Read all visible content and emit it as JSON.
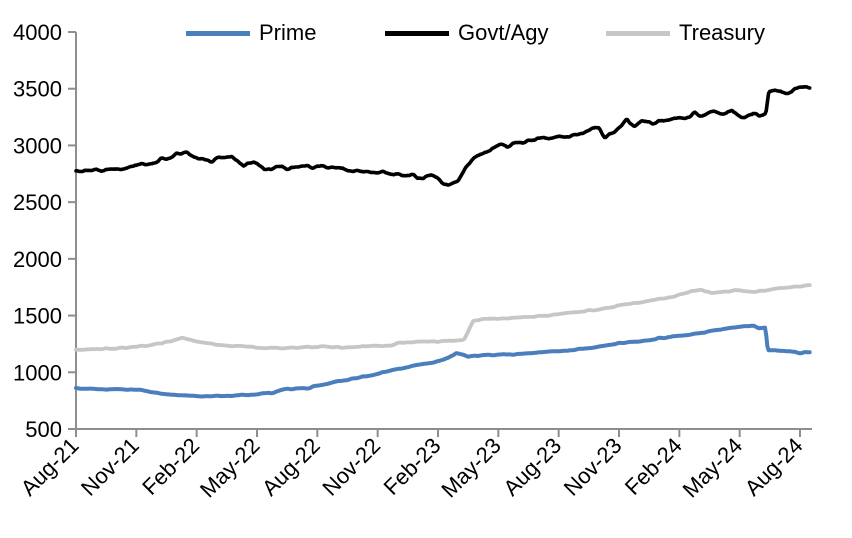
{
  "colors": {
    "background": "#ffffff",
    "axis": "#8e8e8e",
    "tick_text": "#000000",
    "prime": "#4a7ebd",
    "govt_agy": "#000000",
    "treasury": "#c6c6c6"
  },
  "chart_data": {
    "type": "line",
    "title": "",
    "xlabel": "",
    "ylabel": "",
    "x_unit": "months since Aug-2021 (0 = Aug-21)",
    "x_range": [
      0,
      36.5
    ],
    "ylim": [
      500,
      4000
    ],
    "y_ticks": [
      500,
      1000,
      1500,
      2000,
      2500,
      3000,
      3500,
      4000
    ],
    "x_tick_labels": [
      "Aug-21",
      "Nov-21",
      "Feb-22",
      "May-22",
      "Aug-22",
      "Nov-22",
      "Feb-23",
      "May-23",
      "Aug-23",
      "Nov-23",
      "Feb-24",
      "May-24",
      "Aug-24"
    ],
    "x_tick_positions": [
      0,
      3,
      6,
      9,
      12,
      15,
      18,
      21,
      24,
      27,
      30,
      33,
      36
    ],
    "grid": false,
    "legend_position": "top",
    "series": [
      {
        "name": "Prime",
        "color": "#4a7ebd",
        "width": 4,
        "noise_amp": 4,
        "points": [
          [
            0,
            858
          ],
          [
            0.8,
            853
          ],
          [
            1.6,
            850
          ],
          [
            2.4,
            847
          ],
          [
            3.2,
            842
          ],
          [
            4,
            820
          ],
          [
            4.6,
            802
          ],
          [
            5.4,
            794
          ],
          [
            6.2,
            790
          ],
          [
            7,
            792
          ],
          [
            7.8,
            795
          ],
          [
            8.6,
            801
          ],
          [
            9.2,
            812
          ],
          [
            9.8,
            820
          ],
          [
            10.3,
            848
          ],
          [
            11,
            858
          ],
          [
            11.6,
            856
          ],
          [
            11.85,
            878
          ],
          [
            12.3,
            892
          ],
          [
            13,
            920
          ],
          [
            14,
            950
          ],
          [
            15,
            988
          ],
          [
            16,
            1030
          ],
          [
            17,
            1062
          ],
          [
            18,
            1098
          ],
          [
            18.5,
            1128
          ],
          [
            18.9,
            1168
          ],
          [
            19.5,
            1140
          ],
          [
            20.3,
            1150
          ],
          [
            21,
            1153
          ],
          [
            22,
            1161
          ],
          [
            23,
            1172
          ],
          [
            24,
            1186
          ],
          [
            25,
            1202
          ],
          [
            26,
            1228
          ],
          [
            27,
            1256
          ],
          [
            28,
            1270
          ],
          [
            29,
            1300
          ],
          [
            30,
            1320
          ],
          [
            31,
            1346
          ],
          [
            32,
            1378
          ],
          [
            32.8,
            1398
          ],
          [
            33.7,
            1408
          ],
          [
            33.95,
            1385
          ],
          [
            34.28,
            1396
          ],
          [
            34.4,
            1192
          ],
          [
            35,
            1190
          ],
          [
            35.6,
            1180
          ],
          [
            36,
            1170
          ],
          [
            36.5,
            1178
          ]
        ]
      },
      {
        "name": "Govt/Agy",
        "color": "#000000",
        "width": 3.6,
        "noise_amp": 14,
        "points": [
          [
            0,
            2770
          ],
          [
            0.7,
            2783
          ],
          [
            1.4,
            2772
          ],
          [
            2.2,
            2796
          ],
          [
            3,
            2822
          ],
          [
            3.8,
            2852
          ],
          [
            4.6,
            2892
          ],
          [
            5.3,
            2943
          ],
          [
            5.7,
            2915
          ],
          [
            6.2,
            2880
          ],
          [
            6.8,
            2865
          ],
          [
            7.2,
            2900
          ],
          [
            7.7,
            2890
          ],
          [
            8,
            2868
          ],
          [
            8.35,
            2818
          ],
          [
            8.8,
            2862
          ],
          [
            9.35,
            2790
          ],
          [
            10,
            2806
          ],
          [
            10.7,
            2798
          ],
          [
            11.4,
            2808
          ],
          [
            12,
            2815
          ],
          [
            12.7,
            2800
          ],
          [
            13.5,
            2790
          ],
          [
            14.3,
            2774
          ],
          [
            15.2,
            2768
          ],
          [
            16,
            2748
          ],
          [
            16.8,
            2730
          ],
          [
            17.3,
            2718
          ],
          [
            17.7,
            2728
          ],
          [
            18.1,
            2690
          ],
          [
            18.5,
            2645
          ],
          [
            19,
            2685
          ],
          [
            19.4,
            2822
          ],
          [
            19.8,
            2892
          ],
          [
            20.3,
            2932
          ],
          [
            20.8,
            2975
          ],
          [
            21.1,
            3005
          ],
          [
            21.45,
            2986
          ],
          [
            21.9,
            3020
          ],
          [
            22.4,
            3040
          ],
          [
            23,
            3052
          ],
          [
            23.6,
            3062
          ],
          [
            24,
            3072
          ],
          [
            24.6,
            3090
          ],
          [
            25.2,
            3112
          ],
          [
            25.7,
            3140
          ],
          [
            26,
            3148
          ],
          [
            26.3,
            3065
          ],
          [
            26.7,
            3118
          ],
          [
            27.1,
            3160
          ],
          [
            27.4,
            3242
          ],
          [
            27.75,
            3155
          ],
          [
            28.1,
            3205
          ],
          [
            28.6,
            3192
          ],
          [
            29.1,
            3218
          ],
          [
            29.7,
            3232
          ],
          [
            30.3,
            3252
          ],
          [
            30.8,
            3282
          ],
          [
            31.2,
            3262
          ],
          [
            31.7,
            3298
          ],
          [
            32.2,
            3278
          ],
          [
            32.6,
            3302
          ],
          [
            33.05,
            3238
          ],
          [
            33.5,
            3278
          ],
          [
            34,
            3262
          ],
          [
            34.3,
            3272
          ],
          [
            34.45,
            3468
          ],
          [
            35,
            3482
          ],
          [
            35.35,
            3468
          ],
          [
            35.8,
            3495
          ],
          [
            36.2,
            3508
          ],
          [
            36.5,
            3520
          ]
        ]
      },
      {
        "name": "Treasury",
        "color": "#c6c6c6",
        "width": 3.8,
        "noise_amp": 5,
        "points": [
          [
            0,
            1198
          ],
          [
            0.8,
            1203
          ],
          [
            1.6,
            1208
          ],
          [
            2.4,
            1215
          ],
          [
            3.2,
            1228
          ],
          [
            4,
            1248
          ],
          [
            4.7,
            1275
          ],
          [
            5.3,
            1306
          ],
          [
            5.7,
            1288
          ],
          [
            6.2,
            1262
          ],
          [
            7,
            1243
          ],
          [
            7.8,
            1234
          ],
          [
            8.6,
            1224
          ],
          [
            9.4,
            1216
          ],
          [
            10.2,
            1212
          ],
          [
            11,
            1218
          ],
          [
            11.8,
            1223
          ],
          [
            12.4,
            1226
          ],
          [
            13.2,
            1218
          ],
          [
            14,
            1224
          ],
          [
            14.8,
            1232
          ],
          [
            15.7,
            1234
          ],
          [
            16.05,
            1262
          ],
          [
            16.8,
            1268
          ],
          [
            17.6,
            1270
          ],
          [
            18.4,
            1272
          ],
          [
            19,
            1282
          ],
          [
            19.3,
            1292
          ],
          [
            19.45,
            1340
          ],
          [
            19.75,
            1452
          ],
          [
            20.2,
            1466
          ],
          [
            20.8,
            1472
          ],
          [
            21.4,
            1478
          ],
          [
            22,
            1486
          ],
          [
            22.8,
            1492
          ],
          [
            23.6,
            1503
          ],
          [
            24.2,
            1518
          ],
          [
            25,
            1532
          ],
          [
            26,
            1556
          ],
          [
            27,
            1588
          ],
          [
            28,
            1613
          ],
          [
            29,
            1646
          ],
          [
            30,
            1680
          ],
          [
            30.6,
            1720
          ],
          [
            31.1,
            1728
          ],
          [
            31.6,
            1694
          ],
          [
            32.2,
            1706
          ],
          [
            32.8,
            1722
          ],
          [
            33.3,
            1716
          ],
          [
            33.8,
            1712
          ],
          [
            34.4,
            1723
          ],
          [
            35,
            1740
          ],
          [
            35.6,
            1753
          ],
          [
            36.1,
            1760
          ],
          [
            36.5,
            1766
          ]
        ]
      }
    ]
  }
}
